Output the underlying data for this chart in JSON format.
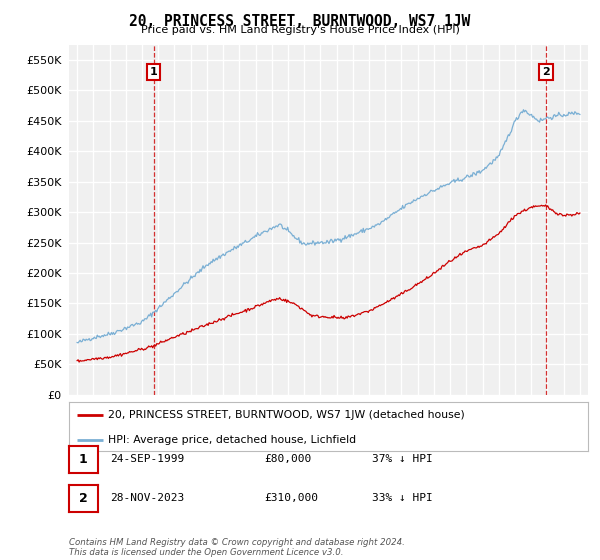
{
  "title": "20, PRINCESS STREET, BURNTWOOD, WS7 1JW",
  "subtitle": "Price paid vs. HM Land Registry's House Price Index (HPI)",
  "red_label": "20, PRINCESS STREET, BURNTWOOD, WS7 1JW (detached house)",
  "blue_label": "HPI: Average price, detached house, Lichfield",
  "annotation1_num": "1",
  "annotation1_date": "24-SEP-1999",
  "annotation1_price": "£80,000",
  "annotation1_hpi": "37% ↓ HPI",
  "annotation2_num": "2",
  "annotation2_date": "28-NOV-2023",
  "annotation2_price": "£310,000",
  "annotation2_hpi": "33% ↓ HPI",
  "footnote": "Contains HM Land Registry data © Crown copyright and database right 2024.\nThis data is licensed under the Open Government Licence v3.0.",
  "ylim": [
    0,
    575000
  ],
  "yticks": [
    0,
    50000,
    100000,
    150000,
    200000,
    250000,
    300000,
    350000,
    400000,
    450000,
    500000,
    550000
  ],
  "bg_color": "#f0f0f0",
  "grid_color": "#ffffff",
  "red_color": "#cc0000",
  "blue_color": "#7aafd4",
  "sale1_year": 1999.73,
  "sale1_price": 80000,
  "sale2_year": 2023.91,
  "sale2_price": 310000,
  "xmin": 1994.5,
  "xmax": 2026.5
}
